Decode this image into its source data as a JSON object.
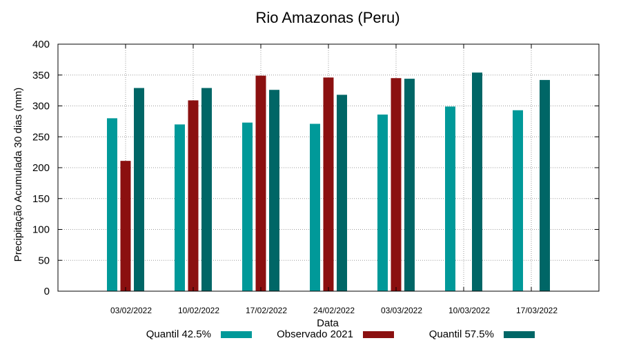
{
  "chart_data": {
    "type": "bar",
    "title": "Rio Amazonas (Peru)",
    "xlabel": "Data",
    "ylabel": "Precipitação Acumulada 30 dias (mm)",
    "ylim": [
      0,
      400
    ],
    "yticks": [
      0,
      50,
      100,
      150,
      200,
      250,
      300,
      350,
      400
    ],
    "grid": true,
    "legend_position": "bottom",
    "categories": [
      "03/02/2022",
      "10/02/2022",
      "17/02/2022",
      "24/02/2022",
      "03/03/2022",
      "10/03/2022",
      "17/03/2022"
    ],
    "series": [
      {
        "name": "Quantil 42.5%",
        "color": "#009999",
        "values": [
          280,
          270,
          273,
          271,
          286,
          299,
          293
        ]
      },
      {
        "name": "Observado 2021",
        "color": "#8b1010",
        "values": [
          211,
          309,
          349,
          346,
          345,
          null,
          null
        ]
      },
      {
        "name": "Quantil 57.5%",
        "color": "#006666",
        "values": [
          329,
          329,
          326,
          318,
          344,
          354,
          342
        ]
      }
    ]
  }
}
